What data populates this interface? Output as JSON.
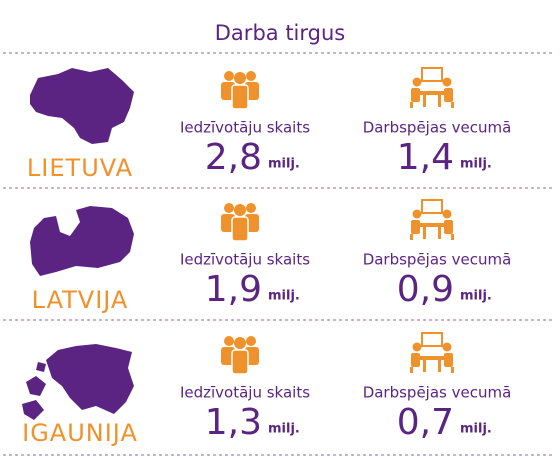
{
  "title": "Darba tirgus",
  "countries": [
    {
      "name": "LIETUVA",
      "population_label": "Iedzīvotāju skaits",
      "population": "2,8",
      "population_unit": "milj.",
      "working_label": "Darbspējas vecumā",
      "working": "1,4",
      "working_unit": "milj."
    },
    {
      "name": "LATVIJA",
      "population_label": "Iedzīvotāju skaits",
      "population": "1,9",
      "population_unit": "milj.",
      "working_label": "Darbspējas vecumā",
      "working": "0,9",
      "working_unit": "milj."
    },
    {
      "name": "IGAUNIJA",
      "population_label": "Iedzīvotāju skaits",
      "population": "1,3",
      "population_unit": "milj.",
      "working_label": "Darbspējas vecumā",
      "working": "0,7",
      "working_unit": "milj."
    }
  ]
}
